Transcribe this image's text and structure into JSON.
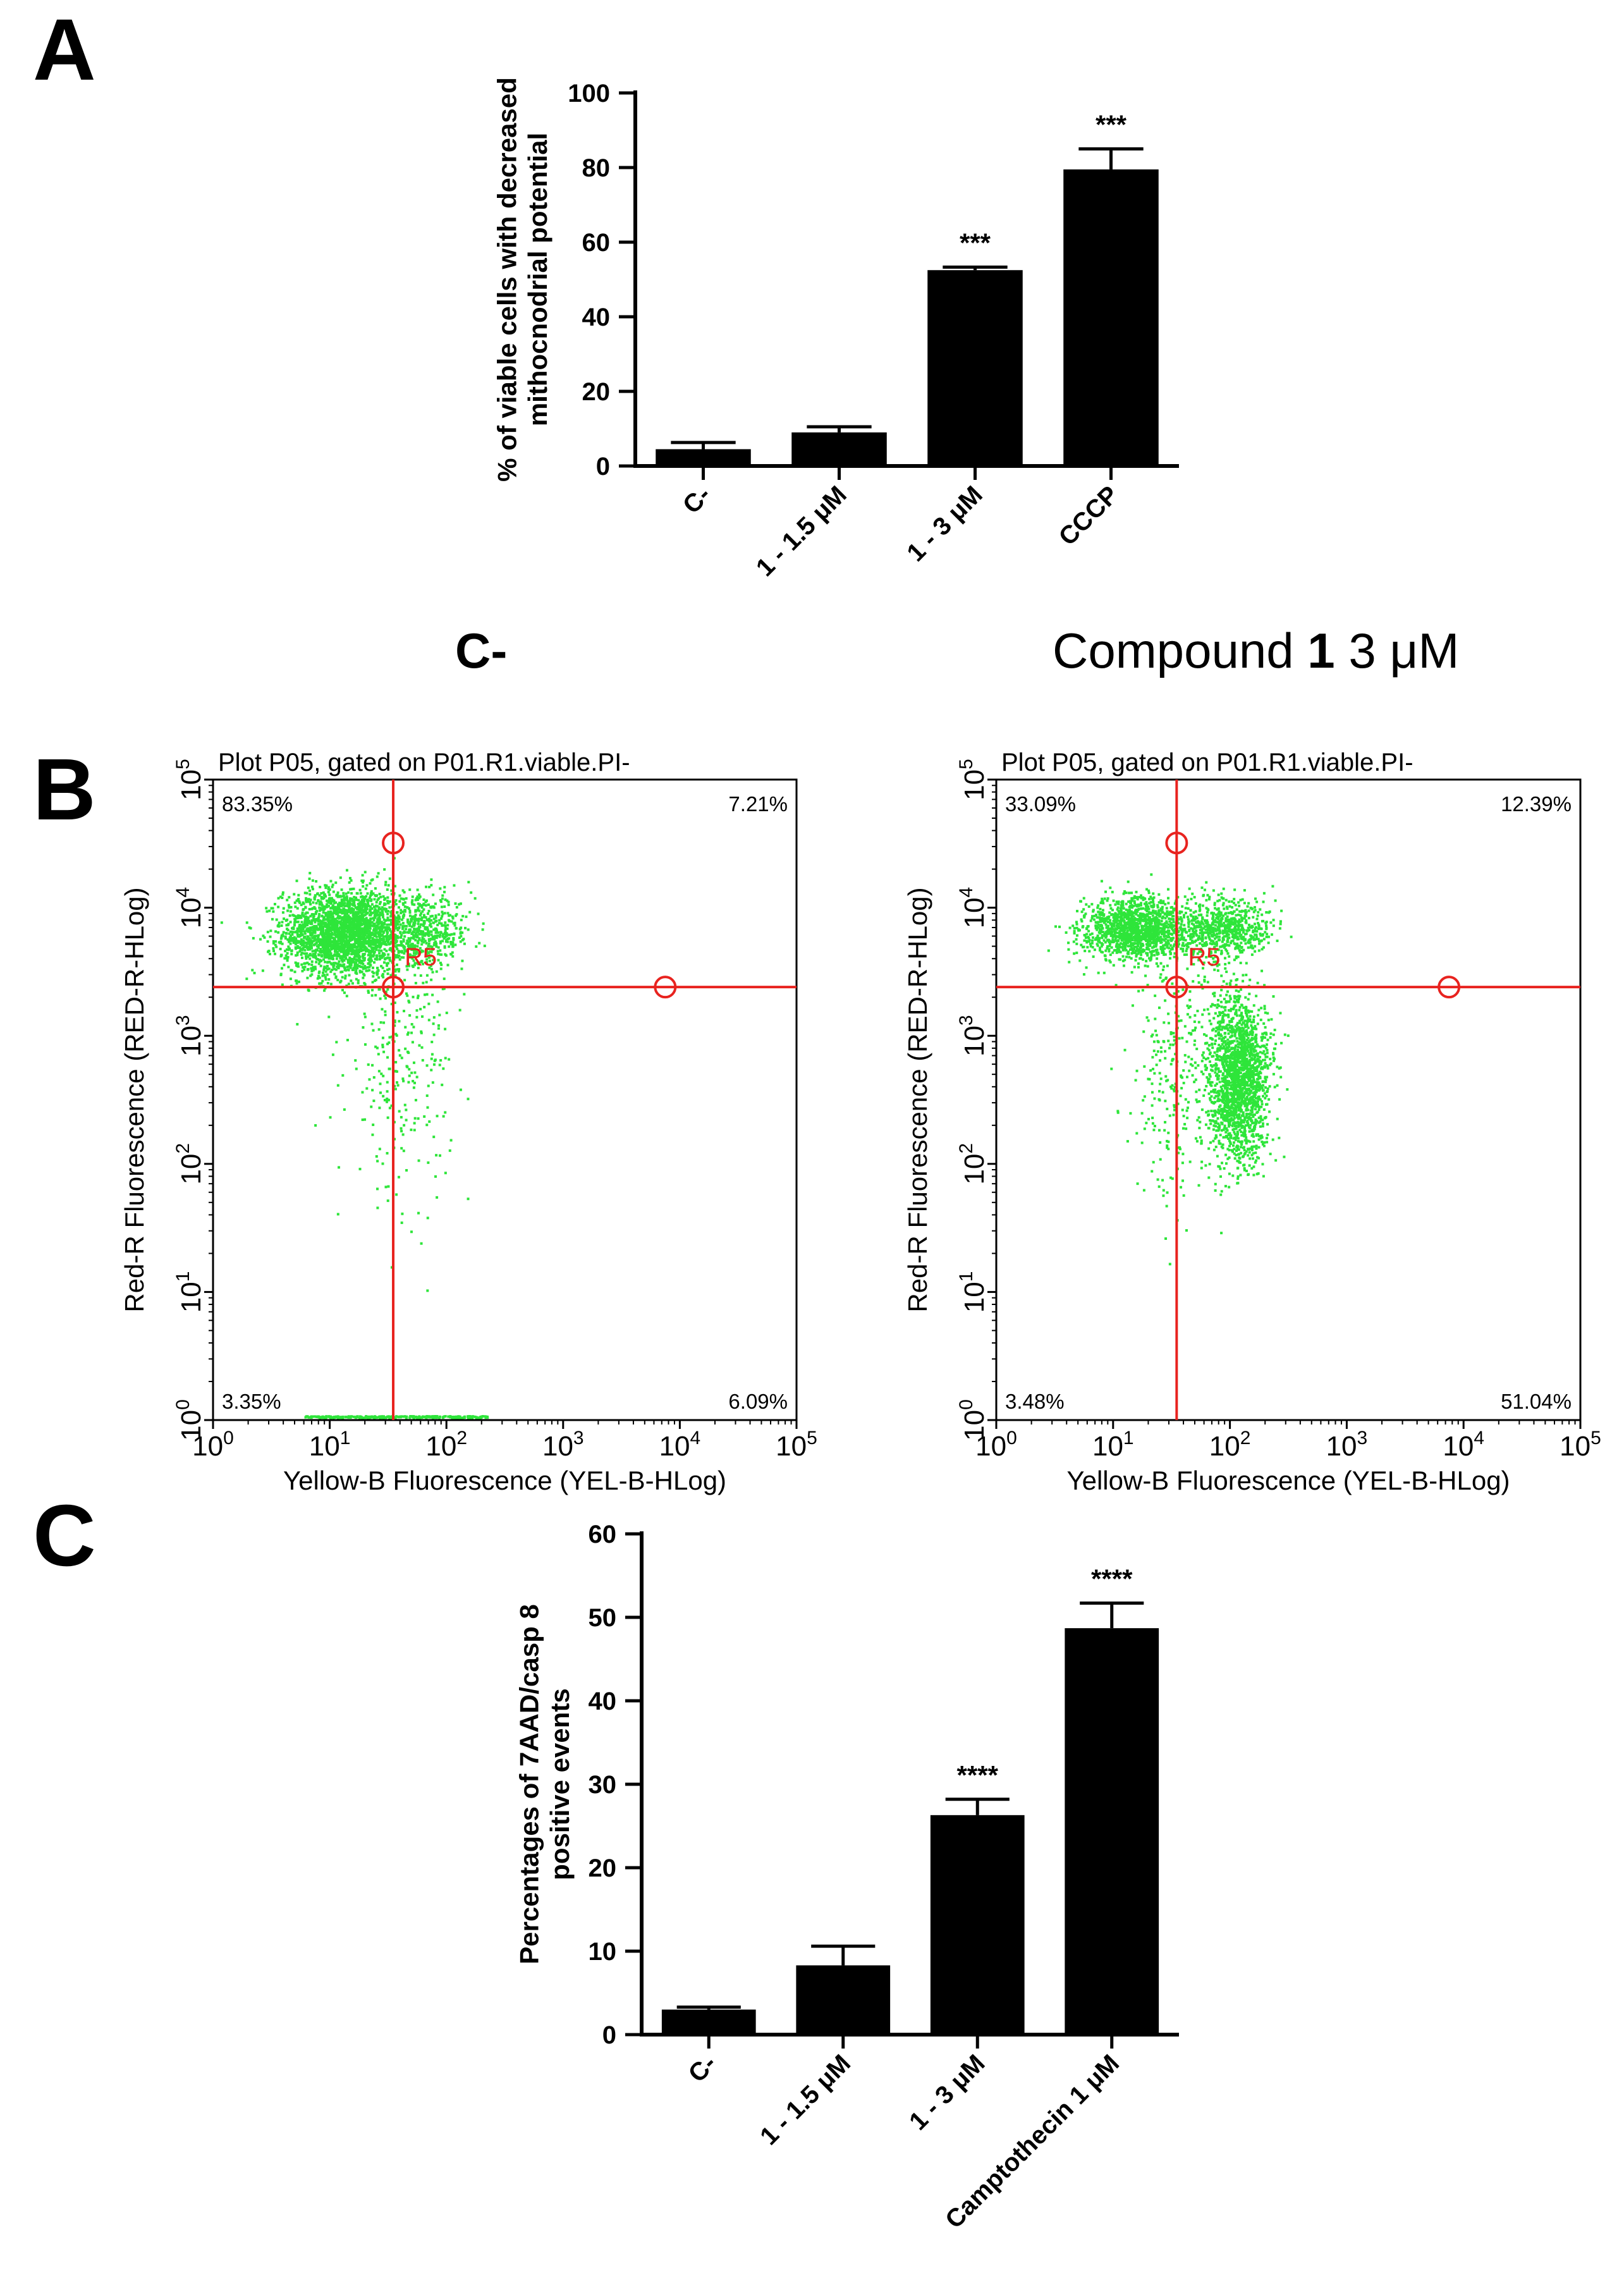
{
  "panels": {
    "a": "A",
    "b": "B",
    "c": "C"
  },
  "colors": {
    "bar": "#000000",
    "dots": "#2ee53a",
    "gate": "#e8231f",
    "axis": "#000000"
  },
  "chart_data": [
    {
      "id": "A",
      "type": "bar",
      "ylabel": [
        "% of viable cells with decreased",
        "mithocnodrial potential"
      ],
      "xlabel": "",
      "categories": [
        "C-",
        "1 - 1.5 μM",
        "1 - 3 μM",
        "CCCP"
      ],
      "values": [
        4.5,
        9.0,
        52.5,
        79.5
      ],
      "errors": [
        1.8,
        1.5,
        0.8,
        5.5
      ],
      "significance": [
        "",
        "",
        "***",
        "***"
      ],
      "ylim": [
        0,
        100
      ],
      "yticks": [
        0,
        20,
        40,
        60,
        80,
        100
      ]
    },
    {
      "id": "B-left",
      "type": "scatter",
      "condition_title": "C-",
      "plot_title": "Plot P05, gated on P01.R1.viable.PI-",
      "xlabel": "Yellow-B Fluorescence (YEL-B-HLog)",
      "ylabel": "Red-R Fluorescence (RED-R-HLog)",
      "xscale": "log",
      "yscale": "log",
      "xlim": [
        1,
        100000
      ],
      "ylim": [
        1,
        100000
      ],
      "tick_exponents": [
        "0",
        "1",
        "2",
        "3",
        "4",
        "5"
      ],
      "gate_x": 35,
      "gate_y": 2400,
      "gate_handles": [
        [
          35,
          32000
        ],
        [
          35,
          2400
        ],
        [
          7500,
          2400
        ]
      ],
      "region_label": "R5",
      "quadrants": {
        "upper_left": "83.35%",
        "upper_right": "7.21%",
        "lower_left": "3.35%",
        "lower_right": "6.09%"
      },
      "populations": [
        {
          "center": [
            13,
            6500
          ],
          "spread": [
            0.26,
            0.17
          ],
          "n": 2600
        },
        {
          "center": [
            60,
            6500
          ],
          "spread": [
            0.22,
            0.14
          ],
          "n": 550
        },
        {
          "center": [
            40,
            600
          ],
          "spread": [
            0.22,
            0.5
          ],
          "n": 260
        }
      ],
      "baseline_events": {
        "x_range": [
          6,
          220
        ],
        "y": 1,
        "n": 260
      }
    },
    {
      "id": "B-right",
      "type": "scatter",
      "condition_title": "Compound 1 3 μM",
      "plot_title": "Plot P05, gated on P01.R1.viable.PI-",
      "xlabel": "Yellow-B Fluorescence (YEL-B-HLog)",
      "ylabel": "Red-R Fluorescence (RED-R-HLog)",
      "xscale": "log",
      "yscale": "log",
      "xlim": [
        1,
        100000
      ],
      "ylim": [
        1,
        100000
      ],
      "tick_exponents": [
        "0",
        "1",
        "2",
        "3",
        "4",
        "5"
      ],
      "gate_x": 35,
      "gate_y": 2400,
      "gate_handles": [
        [
          35,
          32000
        ],
        [
          35,
          2400
        ],
        [
          7500,
          2400
        ]
      ],
      "region_label": "R5",
      "quadrants": {
        "upper_left": "33.09%",
        "upper_right": "12.39%",
        "lower_left": "3.48%",
        "lower_right": "51.04%"
      },
      "populations": [
        {
          "center": [
            15,
            7000
          ],
          "spread": [
            0.22,
            0.12
          ],
          "n": 1400
        },
        {
          "center": [
            85,
            7000
          ],
          "spread": [
            0.2,
            0.12
          ],
          "n": 700
        },
        {
          "center": [
            115,
            480
          ],
          "spread": [
            0.13,
            0.32
          ],
          "n": 1900
        },
        {
          "center": [
            35,
            500
          ],
          "spread": [
            0.2,
            0.55
          ],
          "n": 280
        }
      ],
      "baseline_events": {
        "x_range": [
          6,
          220
        ],
        "y": 1,
        "n": 0
      }
    },
    {
      "id": "C",
      "type": "bar",
      "ylabel": [
        "Percentages of 7AAD/casp 8",
        "positive events"
      ],
      "xlabel": "",
      "categories": [
        "C-",
        "1 - 1.5 μM",
        "1 - 3 μM",
        "Camptothecin 1 μM"
      ],
      "values": [
        3.0,
        8.3,
        26.3,
        48.7
      ],
      "errors": [
        0.3,
        2.3,
        1.9,
        3.0
      ],
      "significance": [
        "",
        "",
        "****",
        "****"
      ],
      "ylim": [
        0,
        60
      ],
      "yticks": [
        0,
        10,
        20,
        30,
        40,
        50,
        60
      ]
    }
  ]
}
